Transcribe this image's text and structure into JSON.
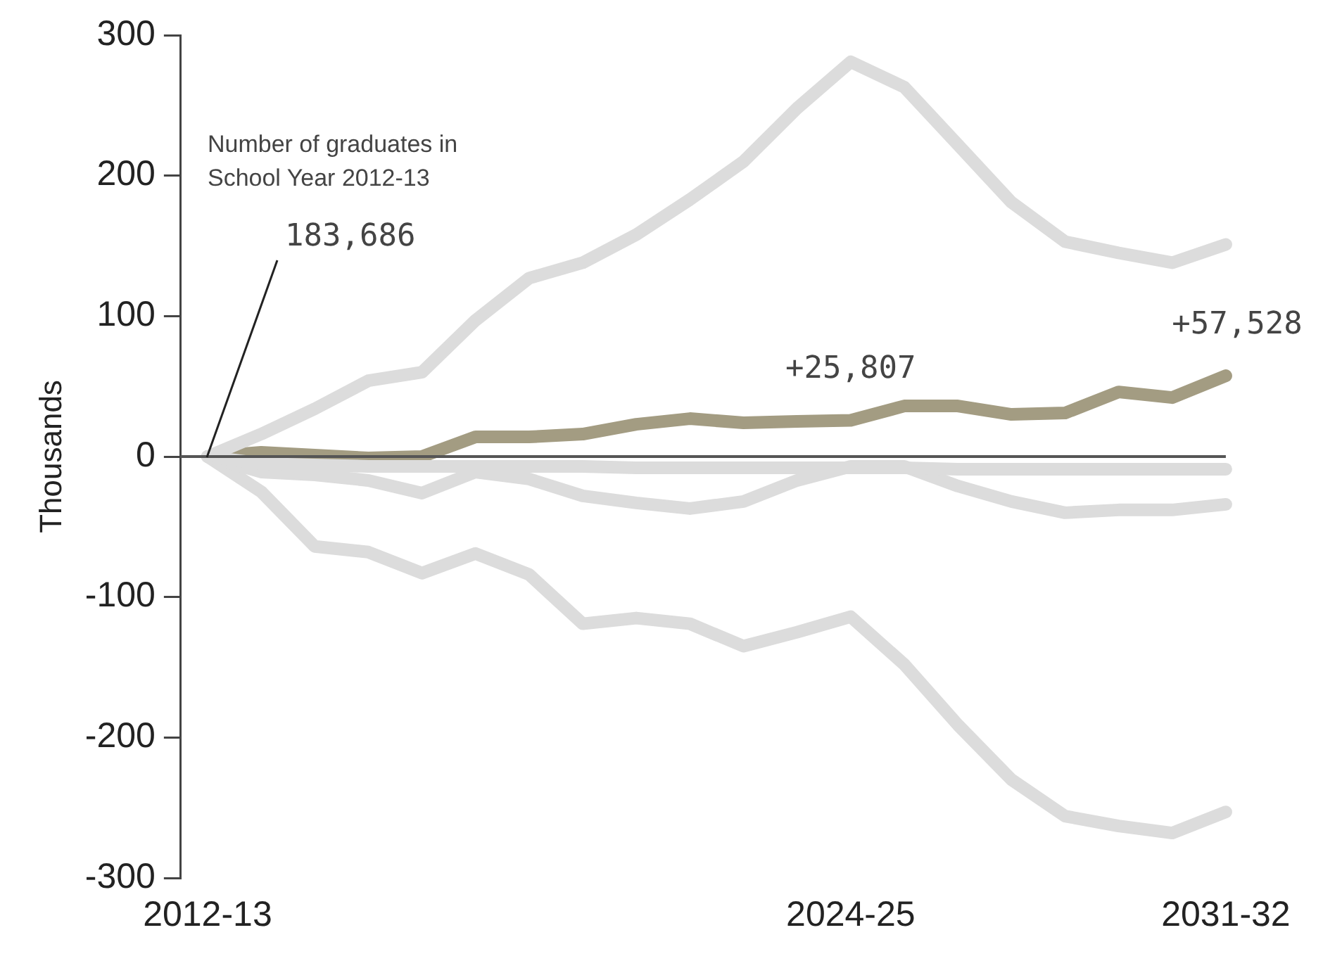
{
  "chart_data": {
    "type": "line",
    "ylabel": "Thousands",
    "categories": [
      "2012-13",
      null,
      null,
      null,
      null,
      null,
      null,
      null,
      null,
      null,
      null,
      null,
      "2024-25",
      null,
      null,
      null,
      null,
      null,
      null,
      "2031-32"
    ],
    "series": [
      {
        "color": "#dcdcdc",
        "values": [
          0,
          16,
          34,
          54,
          60,
          97,
          127,
          138,
          158,
          183,
          210,
          248,
          281,
          263,
          222,
          181,
          153,
          145,
          138,
          151
        ]
      },
      {
        "color": "#dcdcdc",
        "values": [
          0,
          -5,
          -6,
          -7,
          -7,
          -7,
          -7,
          -7,
          -8,
          -8,
          -8,
          -8,
          -8,
          -8,
          -9,
          -9,
          -9,
          -9,
          -9,
          -9
        ]
      },
      {
        "color": "#dcdcdc",
        "values": [
          0,
          -11,
          -13,
          -17,
          -26,
          -11,
          -16,
          -28,
          -33,
          -37,
          -32,
          -17,
          -7,
          -7,
          -21,
          -32,
          -40,
          -38,
          -38,
          -34
        ]
      },
      {
        "color": "#dcdcdc",
        "values": [
          0,
          -25,
          -64,
          -68,
          -83,
          -69,
          -84,
          -119,
          -115,
          -119,
          -135,
          -125,
          -114,
          -148,
          -191,
          -230,
          -256,
          -263,
          -268,
          -253
        ]
      },
      {
        "color": "#a39c82",
        "values": [
          0,
          3,
          1,
          -1,
          0,
          14,
          14,
          16,
          23,
          27,
          24,
          25,
          25.807,
          36,
          36,
          30,
          31,
          46,
          42,
          57.528
        ]
      }
    ],
    "ylim": [
      -300,
      300
    ],
    "yticks": [
      -300,
      -200,
      -100,
      0,
      100,
      200,
      300
    ],
    "ref_lines": [
      {
        "axis": "y",
        "value": 0,
        "color": "#555555"
      }
    ],
    "annotations": [
      "Number of graduates in\nSchool Year 2012-13",
      {
        "text": "183,686",
        "x": "2012-13",
        "y": 0
      },
      {
        "text": "+25,807",
        "x": "2024-25",
        "y": 25.807
      },
      {
        "text": "+57,528",
        "x": "2031-32",
        "y": 57.528
      }
    ],
    "grid": false,
    "legend": false,
    "marker": "none",
    "line_style": "solid"
  }
}
